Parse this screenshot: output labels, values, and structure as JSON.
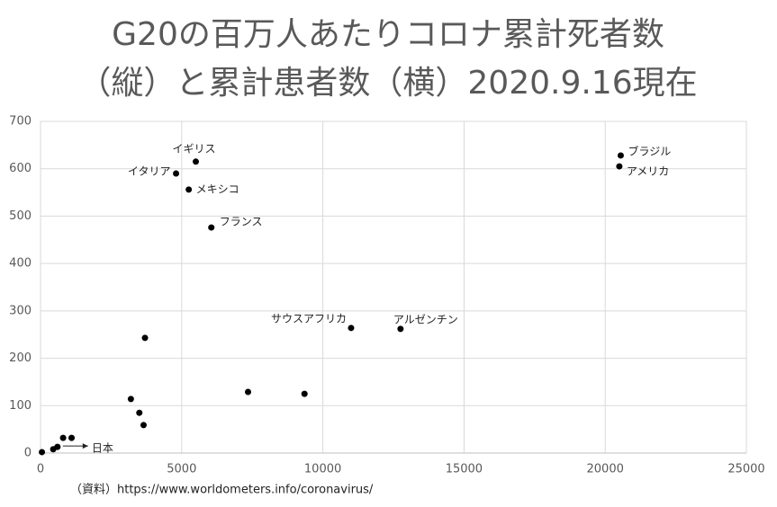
{
  "chart_data": {
    "type": "scatter",
    "title": [
      "G20の百万人あたりコロナ累計死者数",
      "（縦）と累計患者数（横）2020.9.16現在"
    ],
    "source": "（資料）https://www.worldometers.info/coronavirus/",
    "x": [
      4800,
      5500,
      5250,
      6050,
      20550,
      20500,
      11000,
      12750,
      3700,
      7350,
      9350,
      3200,
      3500,
      3650,
      800,
      1100,
      600,
      450,
      50
    ],
    "values": [
      590,
      615,
      556,
      476,
      628,
      605,
      264,
      262,
      243,
      129,
      125,
      114,
      85,
      59,
      32,
      32,
      13,
      8,
      2
    ],
    "labels": [
      "イタリア",
      "イギリス",
      "メキシコ",
      "フランス",
      "ブラジル",
      "アメリカ",
      "サウスアフリカ",
      "アルゼンチン",
      null,
      null,
      null,
      null,
      null,
      null,
      null,
      null,
      "日本",
      null,
      null
    ],
    "color": "#000000",
    "xlim": [
      0,
      25000
    ],
    "xticks": [
      0,
      5000,
      10000,
      15000,
      20000,
      25000
    ],
    "ylim": [
      0,
      700
    ],
    "yticks": [
      0,
      100,
      200,
      300,
      400,
      500,
      600,
      700
    ],
    "grid": true
  }
}
